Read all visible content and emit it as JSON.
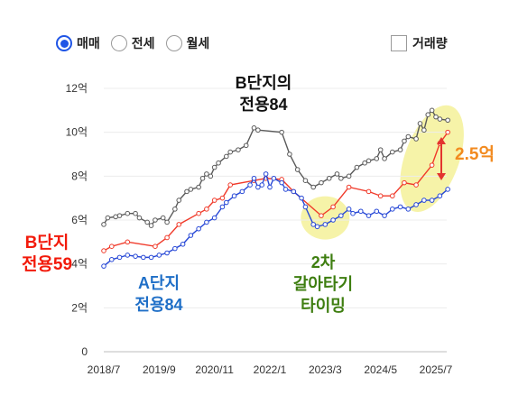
{
  "controls": {
    "radios": [
      {
        "label": "매매",
        "checked": true
      },
      {
        "label": "전세",
        "checked": false
      },
      {
        "label": "월세",
        "checked": false
      }
    ],
    "checkbox": {
      "label": "거래량",
      "checked": false
    }
  },
  "annotations": {
    "b84": {
      "line1": "B단지의",
      "line2": "전용84",
      "color": "#111111"
    },
    "b59": {
      "line1": "B단지",
      "line2": "전용59",
      "color": "#f21a0a"
    },
    "a84": {
      "line1": "A단지",
      "line2": "전용84",
      "color": "#1f6fc7"
    },
    "reverse": {
      "line1": "2차",
      "line2": "갈아타기",
      "line3": "타이밍",
      "color": "#3e7e10"
    },
    "gap": {
      "label": "2.5억",
      "color": "#f28a1f"
    }
  },
  "chart_data": {
    "type": "line",
    "xlabel": "",
    "ylabel": "",
    "x_ticks": [
      "2018/7",
      "2019/9",
      "2020/11",
      "2022/1",
      "2023/3",
      "2024/5",
      "2025/7"
    ],
    "y_ticks": [
      "0",
      "2억",
      "4억",
      "6억",
      "8억",
      "10억",
      "12억"
    ],
    "ylim": [
      0,
      12
    ],
    "grid": "horizontal",
    "series": [
      {
        "name": "B단지의 전용84",
        "color": "#5a5a5a",
        "points": [
          [
            "2018-07",
            5.8
          ],
          [
            "2018-08",
            6.1
          ],
          [
            "2018-10",
            6.15
          ],
          [
            "2018-11",
            6.2
          ],
          [
            "2019-01",
            6.3
          ],
          [
            "2019-03",
            6.3
          ],
          [
            "2019-04",
            6.1
          ],
          [
            "2019-06",
            5.9
          ],
          [
            "2019-07",
            5.75
          ],
          [
            "2019-08",
            6.0
          ],
          [
            "2019-10",
            6.1
          ],
          [
            "2019-11",
            5.9
          ],
          [
            "2020-01",
            6.5
          ],
          [
            "2020-02",
            6.9
          ],
          [
            "2020-04",
            7.3
          ],
          [
            "2020-05",
            7.4
          ],
          [
            "2020-07",
            7.5
          ],
          [
            "2020-08",
            7.9
          ],
          [
            "2020-09",
            8.1
          ],
          [
            "2020-10",
            8.0
          ],
          [
            "2020-11",
            8.4
          ],
          [
            "2020-12",
            8.6
          ],
          [
            "2021-02",
            8.9
          ],
          [
            "2021-03",
            9.1
          ],
          [
            "2021-05",
            9.2
          ],
          [
            "2021-07",
            9.4
          ],
          [
            "2021-09",
            10.2
          ],
          [
            "2021-10",
            10.1
          ],
          [
            "2022-04",
            10.0
          ],
          [
            "2022-06",
            9.0
          ],
          [
            "2022-08",
            8.3
          ],
          [
            "2022-10",
            7.8
          ],
          [
            "2022-12",
            7.5
          ],
          [
            "2023-02",
            7.7
          ],
          [
            "2023-04",
            7.9
          ],
          [
            "2023-06",
            8.1
          ],
          [
            "2023-07",
            7.9
          ],
          [
            "2023-09",
            8.0
          ],
          [
            "2023-11",
            8.4
          ],
          [
            "2024-01",
            8.6
          ],
          [
            "2024-02",
            8.7
          ],
          [
            "2024-04",
            8.8
          ],
          [
            "2024-05",
            9.2
          ],
          [
            "2024-06",
            8.8
          ],
          [
            "2024-08",
            9.1
          ],
          [
            "2024-10",
            9.2
          ],
          [
            "2024-11",
            9.6
          ],
          [
            "2024-12",
            9.8
          ],
          [
            "2025-02",
            9.7
          ],
          [
            "2025-03",
            10.4
          ],
          [
            "2025-04",
            10.1
          ],
          [
            "2025-05",
            10.8
          ],
          [
            "2025-06",
            11.0
          ],
          [
            "2025-07",
            10.7
          ],
          [
            "2025-08",
            10.6
          ],
          [
            "2025-10",
            10.55
          ]
        ]
      },
      {
        "name": "B단지 전용59",
        "color": "#f03a2a",
        "points": [
          [
            "2018-07",
            4.6
          ],
          [
            "2018-09",
            4.8
          ],
          [
            "2019-01",
            5.0
          ],
          [
            "2019-08",
            4.8
          ],
          [
            "2019-11",
            5.2
          ],
          [
            "2020-02",
            5.8
          ],
          [
            "2020-07",
            6.3
          ],
          [
            "2020-09",
            6.5
          ],
          [
            "2020-11",
            6.9
          ],
          [
            "2021-01",
            7.0
          ],
          [
            "2021-03",
            7.6
          ],
          [
            "2021-09",
            7.8
          ],
          [
            "2021-12",
            7.9
          ],
          [
            "2022-04",
            7.85
          ],
          [
            "2022-07",
            7.3
          ],
          [
            "2023-02",
            6.2
          ],
          [
            "2023-05",
            6.6
          ],
          [
            "2023-09",
            7.5
          ],
          [
            "2024-02",
            7.3
          ],
          [
            "2024-05",
            7.1
          ],
          [
            "2024-08",
            7.1
          ],
          [
            "2024-11",
            7.7
          ],
          [
            "2025-02",
            7.6
          ],
          [
            "2025-06",
            8.5
          ],
          [
            "2025-08",
            9.5
          ],
          [
            "2025-10",
            10.0
          ]
        ]
      },
      {
        "name": "A단지 전용84",
        "color": "#2647d6",
        "points": [
          [
            "2018-07",
            3.9
          ],
          [
            "2018-09",
            4.2
          ],
          [
            "2018-11",
            4.3
          ],
          [
            "2019-01",
            4.4
          ],
          [
            "2019-03",
            4.35
          ],
          [
            "2019-05",
            4.3
          ],
          [
            "2019-07",
            4.3
          ],
          [
            "2019-09",
            4.4
          ],
          [
            "2019-11",
            4.5
          ],
          [
            "2020-01",
            4.7
          ],
          [
            "2020-03",
            4.9
          ],
          [
            "2020-05",
            5.3
          ],
          [
            "2020-07",
            5.6
          ],
          [
            "2020-09",
            5.9
          ],
          [
            "2020-11",
            6.1
          ],
          [
            "2021-01",
            6.6
          ],
          [
            "2021-02",
            6.8
          ],
          [
            "2021-04",
            7.1
          ],
          [
            "2021-06",
            7.3
          ],
          [
            "2021-08",
            7.6
          ],
          [
            "2021-09",
            7.9
          ],
          [
            "2021-10",
            7.5
          ],
          [
            "2021-11",
            7.6
          ],
          [
            "2021-12",
            8.1
          ],
          [
            "2022-01",
            7.5
          ],
          [
            "2022-02",
            7.9
          ],
          [
            "2022-04",
            7.7
          ],
          [
            "2022-05",
            7.4
          ],
          [
            "2022-07",
            7.3
          ],
          [
            "2022-09",
            7.0
          ],
          [
            "2022-10",
            6.6
          ],
          [
            "2022-12",
            5.8
          ],
          [
            "2023-01",
            5.7
          ],
          [
            "2023-03",
            5.8
          ],
          [
            "2023-05",
            6.0
          ],
          [
            "2023-07",
            6.2
          ],
          [
            "2023-09",
            6.5
          ],
          [
            "2023-10",
            6.3
          ],
          [
            "2023-12",
            6.4
          ],
          [
            "2024-02",
            6.2
          ],
          [
            "2024-04",
            6.4
          ],
          [
            "2024-06",
            6.2
          ],
          [
            "2024-08",
            6.5
          ],
          [
            "2024-10",
            6.6
          ],
          [
            "2024-12",
            6.5
          ],
          [
            "2025-02",
            6.7
          ],
          [
            "2025-04",
            6.9
          ],
          [
            "2025-06",
            6.9
          ],
          [
            "2025-08",
            7.1
          ],
          [
            "2025-10",
            7.4
          ]
        ]
      }
    ],
    "highlights": [
      {
        "center": [
          "2023-03",
          6.1
        ],
        "color": "#f5f199"
      },
      {
        "center": [
          "2025-06",
          8.8
        ],
        "color": "#f5f199"
      }
    ]
  }
}
